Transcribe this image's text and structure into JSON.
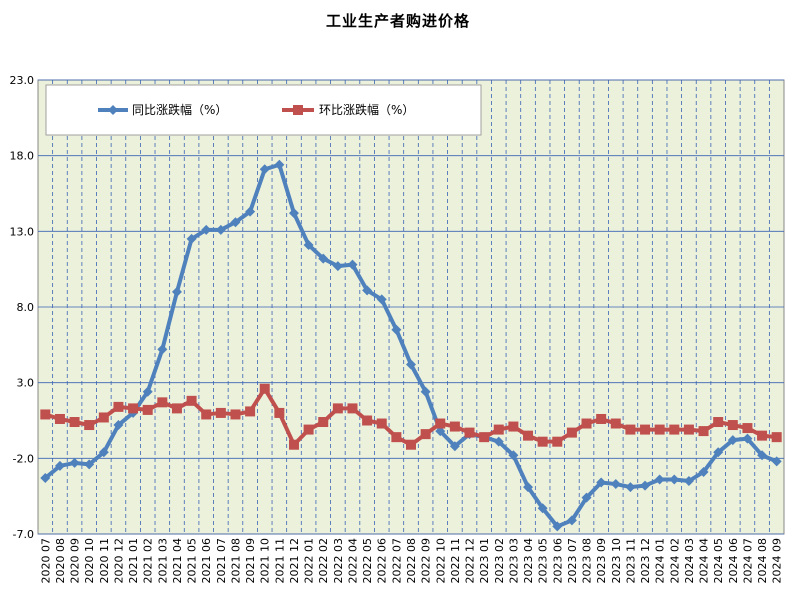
{
  "chart_data": {
    "type": "line",
    "title": "工业生产者购进价格",
    "ylim": [
      -7.0,
      23.0
    ],
    "yticks": [
      "23.0",
      "18.0",
      "13.0",
      "8.0",
      "3.0",
      "-2.0",
      "-7.0"
    ],
    "grid": "vertical dashed, horizontal solid",
    "legend": "top-left",
    "categories": [
      "2020 07",
      "2020 08",
      "2020 09",
      "2020 10",
      "2020 11",
      "2020 12",
      "2021 01",
      "2021 02",
      "2021 03",
      "2021 04",
      "2021 05",
      "2021 06",
      "2021 07",
      "2021 08",
      "2021 09",
      "2021 10",
      "2021 11",
      "2021 12",
      "2022 01",
      "2022 02",
      "2022 03",
      "2022 04",
      "2022 05",
      "2022 06",
      "2022 07",
      "2022 08",
      "2022 09",
      "2022 10",
      "2022 11",
      "2022 12",
      "2023 01",
      "2023 02",
      "2023 03",
      "2023 04",
      "2023 05",
      "2023 06",
      "2023 07",
      "2023 08",
      "2023 09",
      "2023 10",
      "2023 11",
      "2023 12",
      "2024 01",
      "2024 02",
      "2024 03",
      "2024 04",
      "2024 05",
      "2024 06",
      "2024 07",
      "2024 08",
      "2024 09"
    ],
    "series": [
      {
        "name": "同比涨跌幅（%）",
        "color": "#4f81bd",
        "marker": "diamond",
        "values": [
          -3.3,
          -2.5,
          -2.3,
          -2.4,
          -1.6,
          0.2,
          1.0,
          2.4,
          5.2,
          9.0,
          12.5,
          13.1,
          13.1,
          13.6,
          14.3,
          17.1,
          17.4,
          14.2,
          12.1,
          11.2,
          10.7,
          10.8,
          9.1,
          8.5,
          6.5,
          4.2,
          2.4,
          -0.2,
          -1.2,
          -0.4,
          -0.6,
          -0.9,
          -1.8,
          -3.9,
          -5.3,
          -6.5,
          -6.1,
          -4.6,
          -3.6,
          -3.7,
          -3.9,
          -3.8,
          -3.4,
          -3.4,
          -3.5,
          -2.9,
          -1.6,
          -0.8,
          -0.7,
          -1.8,
          -2.2
        ]
      },
      {
        "name": "环比涨跌幅（%）",
        "color": "#c0504d",
        "marker": "square",
        "values": [
          0.9,
          0.6,
          0.4,
          0.2,
          0.7,
          1.4,
          1.3,
          1.2,
          1.7,
          1.3,
          1.8,
          0.9,
          1.0,
          0.9,
          1.1,
          2.6,
          1.0,
          -1.1,
          -0.1,
          0.4,
          1.3,
          1.3,
          0.5,
          0.3,
          -0.6,
          -1.1,
          -0.4,
          0.3,
          0.1,
          -0.3,
          -0.6,
          -0.1,
          0.1,
          -0.5,
          -0.9,
          -0.9,
          -0.3,
          0.3,
          0.6,
          0.3,
          -0.1,
          -0.1,
          -0.1,
          -0.1,
          -0.1,
          -0.2,
          0.4,
          0.2,
          0.0,
          -0.5,
          -0.6
        ]
      }
    ]
  },
  "colors": {
    "plot_background": "#ecf1dc",
    "grid": "#3a64b4"
  }
}
